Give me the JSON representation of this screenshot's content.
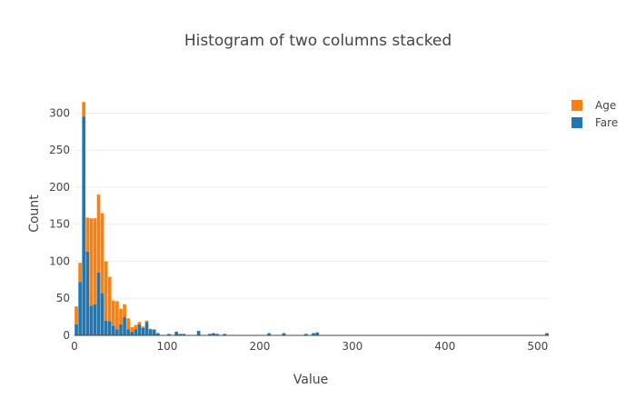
{
  "chart_data": {
    "type": "bar",
    "stacked": true,
    "title": "Histogram of two columns stacked",
    "xlabel": "Value",
    "ylabel": "Count",
    "xlim": [
      0,
      512
    ],
    "ylim": [
      0,
      330
    ],
    "x_ticks": [
      0,
      100,
      200,
      300,
      400,
      500
    ],
    "y_ticks": [
      0,
      50,
      100,
      150,
      200,
      250,
      300
    ],
    "grid": true,
    "legend_position": "top-right",
    "bin_width": 4,
    "series": [
      {
        "name": "Fare",
        "color": "#1f77b4",
        "points": [
          [
            0,
            15
          ],
          [
            4,
            72
          ],
          [
            8,
            295
          ],
          [
            12,
            113
          ],
          [
            16,
            40
          ],
          [
            20,
            42
          ],
          [
            24,
            85
          ],
          [
            28,
            57
          ],
          [
            32,
            20
          ],
          [
            36,
            19
          ],
          [
            40,
            13
          ],
          [
            44,
            8
          ],
          [
            48,
            15
          ],
          [
            52,
            25
          ],
          [
            56,
            8
          ],
          [
            60,
            5
          ],
          [
            64,
            8
          ],
          [
            68,
            15
          ],
          [
            72,
            10
          ],
          [
            76,
            18
          ],
          [
            80,
            8
          ],
          [
            84,
            8
          ],
          [
            88,
            3
          ],
          [
            100,
            2
          ],
          [
            108,
            5
          ],
          [
            112,
            2
          ],
          [
            116,
            2
          ],
          [
            132,
            6
          ],
          [
            144,
            2
          ],
          [
            148,
            3
          ],
          [
            152,
            2
          ],
          [
            160,
            2
          ],
          [
            208,
            3
          ],
          [
            224,
            3
          ],
          [
            248,
            2
          ],
          [
            256,
            3
          ],
          [
            260,
            4
          ],
          [
            508,
            3
          ]
        ]
      },
      {
        "name": "Age",
        "color": "#ff7f0e",
        "points": [
          [
            0,
            24
          ],
          [
            4,
            26
          ],
          [
            8,
            20
          ],
          [
            12,
            46
          ],
          [
            16,
            118
          ],
          [
            20,
            116
          ],
          [
            24,
            105
          ],
          [
            28,
            108
          ],
          [
            32,
            80
          ],
          [
            36,
            60
          ],
          [
            40,
            34
          ],
          [
            44,
            38
          ],
          [
            48,
            21
          ],
          [
            52,
            17
          ],
          [
            56,
            15
          ],
          [
            60,
            6
          ],
          [
            64,
            6
          ],
          [
            68,
            3
          ],
          [
            72,
            2
          ],
          [
            76,
            2
          ],
          [
            80,
            1
          ]
        ]
      }
    ]
  }
}
